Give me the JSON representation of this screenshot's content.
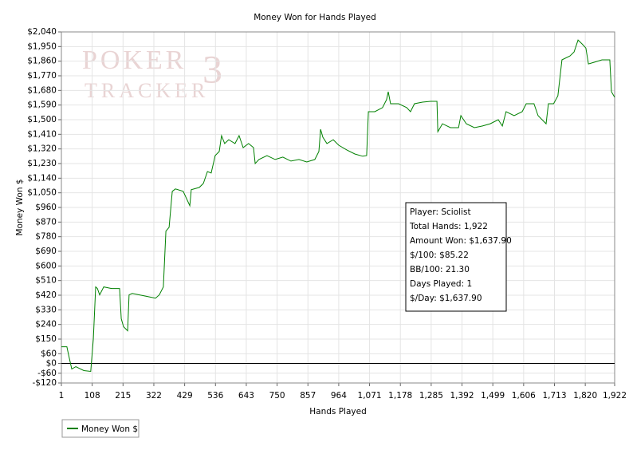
{
  "chart_data": {
    "type": "line",
    "title": "Money Won for Hands Played",
    "x_label": "Hands Played",
    "y_label": "Money Won $",
    "watermark": [
      "POKER",
      "TRACKER",
      "3"
    ],
    "info": [
      "Player: Sciolist",
      "Total Hands: 1,922",
      "Amount Won: $1,637.90",
      "$/100: $85.22",
      "BB/100: 21.30",
      "Days Played: 1",
      "$/Day: $1,637.90"
    ],
    "x": [
      1,
      20,
      26,
      37,
      51,
      79,
      103,
      112,
      120,
      126,
      134,
      148,
      175,
      203,
      209,
      217,
      231,
      236,
      247,
      272,
      300,
      328,
      341,
      355,
      364,
      375,
      386,
      397,
      424,
      447,
      452,
      480,
      494,
      508,
      521,
      535,
      549,
      557,
      568,
      582,
      604,
      618,
      632,
      651,
      668,
      674,
      687,
      715,
      743,
      770,
      798,
      826,
      853,
      881,
      895,
      901,
      909,
      923,
      945,
      964,
      992,
      1020,
      1047,
      1061,
      1067,
      1089,
      1116,
      1130,
      1136,
      1144,
      1172,
      1200,
      1213,
      1227,
      1255,
      1283,
      1305,
      1308,
      1324,
      1352,
      1380,
      1388,
      1407,
      1435,
      1463,
      1490,
      1518,
      1532,
      1545,
      1573,
      1601,
      1615,
      1642,
      1656,
      1684,
      1692,
      1710,
      1725,
      1739,
      1767,
      1781,
      1795,
      1809,
      1822,
      1831,
      1850,
      1878,
      1905,
      1911,
      1922
    ],
    "series": [
      {
        "name": "Money Won $",
        "color": "#008000",
        "values": [
          103,
          103,
          54,
          -34,
          -20,
          -44,
          -49,
          152,
          471,
          461,
          422,
          471,
          461,
          461,
          275,
          226,
          201,
          422,
          431,
          422,
          412,
          402,
          422,
          471,
          814,
          838,
          1059,
          1074,
          1059,
          971,
          1069,
          1083,
          1108,
          1181,
          1172,
          1279,
          1304,
          1402,
          1353,
          1377,
          1353,
          1402,
          1328,
          1353,
          1328,
          1230,
          1255,
          1279,
          1255,
          1270,
          1245,
          1255,
          1240,
          1255,
          1304,
          1441,
          1392,
          1353,
          1377,
          1343,
          1314,
          1289,
          1275,
          1279,
          1549,
          1549,
          1574,
          1623,
          1672,
          1598,
          1598,
          1574,
          1549,
          1598,
          1608,
          1613,
          1613,
          1426,
          1475,
          1451,
          1451,
          1525,
          1475,
          1451,
          1461,
          1475,
          1500,
          1461,
          1549,
          1525,
          1549,
          1598,
          1598,
          1525,
          1475,
          1598,
          1598,
          1647,
          1868,
          1892,
          1917,
          1990,
          1966,
          1941,
          1843,
          1853,
          1868,
          1868,
          1672,
          1637.9
        ]
      }
    ],
    "xlim": [
      1,
      1922
    ],
    "ylim": [
      -120,
      2040
    ],
    "xticks": [
      1,
      108,
      215,
      322,
      429,
      536,
      643,
      750,
      857,
      964,
      {
        "value": 1071,
        "label": "1,071"
      },
      {
        "value": 1178,
        "label": "1,178"
      },
      {
        "value": 1285,
        "label": "1,285"
      },
      {
        "value": 1392,
        "label": "1,392"
      },
      {
        "value": 1499,
        "label": "1,499"
      },
      {
        "value": 1606,
        "label": "1,606"
      },
      {
        "value": 1713,
        "label": "1,713"
      },
      {
        "value": 1820,
        "label": "1,820"
      },
      {
        "value": 1922,
        "label": "1,922"
      }
    ],
    "yticks": [
      {
        "value": -120,
        "label": "-$120"
      },
      {
        "value": -60,
        "label": "-$60"
      },
      {
        "value": 0,
        "label": "$0"
      },
      {
        "value": 60,
        "label": "$60"
      },
      {
        "value": 150,
        "label": "$150"
      },
      {
        "value": 240,
        "label": "$240"
      },
      {
        "value": 330,
        "label": "$330"
      },
      {
        "value": 420,
        "label": "$420"
      },
      {
        "value": 510,
        "label": "$510"
      },
      {
        "value": 600,
        "label": "$600"
      },
      {
        "value": 690,
        "label": "$690"
      },
      {
        "value": 780,
        "label": "$780"
      },
      {
        "value": 870,
        "label": "$870"
      },
      {
        "value": 960,
        "label": "$960"
      },
      {
        "value": 1050,
        "label": "$1,050"
      },
      {
        "value": 1140,
        "label": "$1,140"
      },
      {
        "value": 1230,
        "label": "$1,230"
      },
      {
        "value": 1320,
        "label": "$1,320"
      },
      {
        "value": 1410,
        "label": "$1,410"
      },
      {
        "value": 1500,
        "label": "$1,500"
      },
      {
        "value": 1590,
        "label": "$1,590"
      },
      {
        "value": 1680,
        "label": "$1,680"
      },
      {
        "value": 1770,
        "label": "$1,770"
      },
      {
        "value": 1860,
        "label": "$1,860"
      },
      {
        "value": 1950,
        "label": "$1,950"
      },
      {
        "value": 2040,
        "label": "$2,040"
      }
    ],
    "grid": true,
    "zero_line": true,
    "legend": "bottom-left"
  }
}
